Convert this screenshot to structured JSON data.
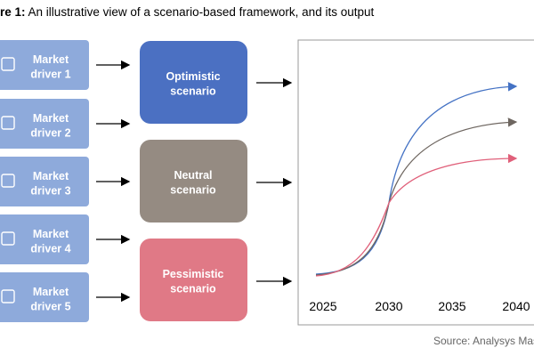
{
  "header": {
    "label": "re 1:",
    "title": "An illustrative view of a scenario-based framework, and its output"
  },
  "drivers": [
    "Market driver 1",
    "Market driver 2",
    "Market driver 3",
    "Market driver 4",
    "Market driver 5"
  ],
  "scenarios": [
    "Optimistic scenario",
    "Neutral scenario",
    "Pessimistic scenario"
  ],
  "output_chart": {
    "x_labels": [
      "2025",
      "2030",
      "2035",
      "2040"
    ]
  },
  "source": "Source: Analysys Mas"
}
